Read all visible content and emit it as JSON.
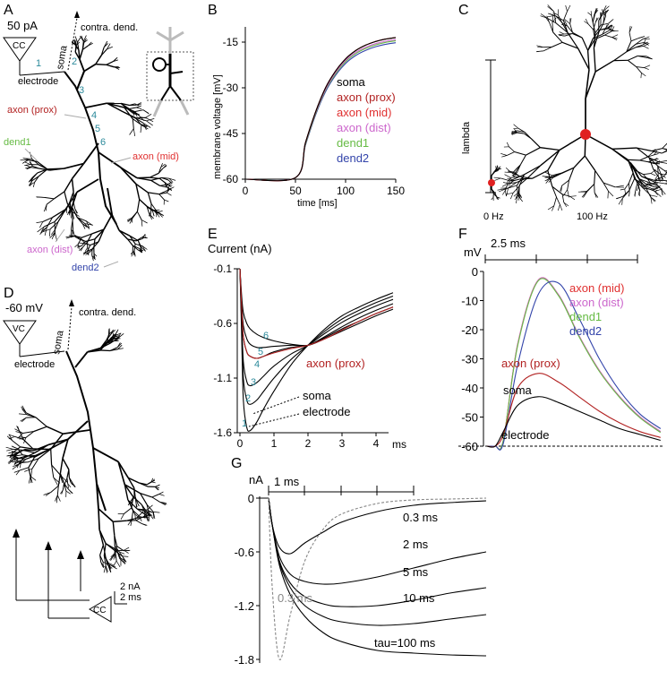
{
  "colors": {
    "soma": "#000000",
    "axon_prox": "#b22222",
    "axon_mid": "#e03030",
    "axon_dist": "#cc66cc",
    "dend1": "#66bb44",
    "dend2": "#3344aa",
    "number": "#2c8a9b",
    "gray": "#888888",
    "cell_marker": "#e02020"
  },
  "panels": {
    "A": {
      "letter": "A",
      "clamp_value": "50 pA",
      "clamp_label": "CC",
      "electrode": "electrode",
      "contra": "contra. dend.",
      "soma": "soma",
      "axon_prox": "axon (prox)",
      "axon_mid": "axon (mid)",
      "axon_dist": "axon (dist)",
      "dend1": "dend1",
      "dend2": "dend2",
      "numbers": [
        "1",
        "2",
        "3",
        "4",
        "5",
        "6"
      ]
    },
    "B": {
      "letter": "B",
      "ylabel": "membrane voltage [mV]",
      "xlabel": "time [ms]",
      "yticks": [
        "-15",
        "-30",
        "-45",
        "-60"
      ],
      "xticks": [
        "0",
        "50",
        "100",
        "150"
      ],
      "legend": [
        "soma",
        "axon  (prox)",
        "axon  (mid)",
        "axon  (dist)",
        "dend1",
        "dend2"
      ]
    },
    "C": {
      "letter": "C",
      "ylabel": "lambda",
      "cells": [
        "0 Hz",
        "100 Hz"
      ]
    },
    "D": {
      "letter": "D",
      "clamp_value": "-60 mV",
      "clamp_label": "VC",
      "electrode": "electrode",
      "contra": "contra. dend.",
      "soma": "soma",
      "cc_label": "CC",
      "scale_current": "2 nA",
      "scale_time": "2 ms"
    },
    "E": {
      "letter": "E",
      "title": "Current (nA)",
      "yticks": [
        "-0.1",
        "-0.6",
        "-1.1",
        "-1.6"
      ],
      "xticks": [
        "0",
        "1",
        "2",
        "3",
        "4"
      ],
      "xunit": "ms",
      "axon_prox": "axon (prox)",
      "soma": "soma",
      "electrode": "electrode",
      "numbers": [
        "1",
        "2",
        "3",
        "4",
        "5",
        "6"
      ]
    },
    "F": {
      "letter": "F",
      "yunit": "mV",
      "scalebar": "2.5 ms",
      "yticks": [
        "0",
        "-10",
        "-20",
        "-30",
        "-40",
        "-50",
        "-60"
      ],
      "labels": [
        "axon (mid)",
        "axon (dist)",
        "dend1",
        "dend2",
        "axon (prox)",
        "soma",
        "electrode"
      ]
    },
    "G": {
      "letter": "G",
      "yunit": "nA",
      "scalebar": "1 ms",
      "yticks": [
        "0",
        "-0.6",
        "-1.2",
        "-1.8"
      ],
      "tau_labels": [
        "0.3 ms",
        "2 ms",
        "5 ms",
        "10 ms",
        "tau=100 ms"
      ],
      "gray_label": "0.3 ms"
    }
  },
  "chart_data": [
    {
      "type": "line",
      "panel": "B",
      "xlabel": "time [ms]",
      "ylabel": "membrane voltage [mV]",
      "xlim": [
        0,
        150
      ],
      "ylim": [
        -60,
        -10
      ],
      "x": [
        0,
        50,
        60,
        70,
        80,
        90,
        100,
        110,
        120,
        130,
        140,
        150
      ],
      "series": [
        {
          "name": "soma",
          "values": [
            -60,
            -59.5,
            -48,
            -38,
            -30,
            -24.5,
            -20.5,
            -17.8,
            -16,
            -14.8,
            -14,
            -13.5
          ]
        },
        {
          "name": "axon  (prox)",
          "values": [
            -60,
            -59.5,
            -48,
            -38,
            -30,
            -24.5,
            -20.5,
            -17.8,
            -16,
            -14.8,
            -14,
            -13.5
          ]
        },
        {
          "name": "axon  (mid)",
          "values": [
            -60,
            -59.5,
            -48,
            -38,
            -30,
            -24.5,
            -20.5,
            -17.8,
            -16,
            -14.8,
            -14,
            -13.5
          ]
        },
        {
          "name": "axon  (dist)",
          "values": [
            -60,
            -59.5,
            -48.2,
            -38.3,
            -30.5,
            -25,
            -21,
            -18.4,
            -16.7,
            -15.5,
            -14.7,
            -14.2
          ]
        },
        {
          "name": "dend1",
          "values": [
            -60,
            -59.5,
            -48.5,
            -38.6,
            -30.8,
            -25.4,
            -21.4,
            -18.8,
            -17.1,
            -15.9,
            -15.1,
            -14.6
          ]
        },
        {
          "name": "dend2",
          "values": [
            -60,
            -59.5,
            -48.8,
            -39,
            -31.3,
            -25.9,
            -22,
            -19.4,
            -17.7,
            -16.5,
            -15.7,
            -15.2
          ]
        }
      ]
    },
    {
      "type": "line",
      "panel": "E",
      "title": "Current (nA)",
      "xlim": [
        0,
        4.5
      ],
      "ylim": [
        -1.6,
        -0.1
      ],
      "x": [
        0,
        0.05,
        0.1,
        0.2,
        0.3,
        0.5,
        0.7,
        1,
        1.5,
        2,
        2.5,
        3,
        3.5,
        4,
        4.5
      ],
      "series": [
        {
          "name": "1",
          "values": [
            -0.1,
            -0.7,
            -1.3,
            -1.55,
            -1.58,
            -1.5,
            -1.38,
            -1.22,
            -0.98,
            -0.8,
            -0.65,
            -0.53,
            -0.45,
            -0.38,
            -0.32
          ]
        },
        {
          "name": "2",
          "values": [
            -0.1,
            -0.6,
            -1.1,
            -1.3,
            -1.34,
            -1.3,
            -1.22,
            -1.1,
            -0.93,
            -0.8,
            -0.67,
            -0.56,
            -0.48,
            -0.41,
            -0.35
          ]
        },
        {
          "name": "3",
          "values": [
            -0.1,
            -0.55,
            -0.95,
            -1.13,
            -1.17,
            -1.14,
            -1.08,
            -0.99,
            -0.88,
            -0.8,
            -0.69,
            -0.59,
            -0.51,
            -0.44,
            -0.38
          ]
        },
        {
          "name": "4",
          "values": [
            -0.1,
            -0.45,
            -0.72,
            -0.86,
            -0.9,
            -0.92,
            -0.9,
            -0.86,
            -0.82,
            -0.8,
            -0.72,
            -0.63,
            -0.55,
            -0.48,
            -0.42
          ]
        },
        {
          "name": "5",
          "values": [
            -0.1,
            -0.4,
            -0.62,
            -0.74,
            -0.79,
            -0.82,
            -0.82,
            -0.81,
            -0.8,
            -0.8,
            -0.73,
            -0.65,
            -0.58,
            -0.51,
            -0.45
          ]
        },
        {
          "name": "6",
          "values": [
            -0.1,
            -0.35,
            -0.5,
            -0.6,
            -0.65,
            -0.7,
            -0.73,
            -0.76,
            -0.79,
            -0.8,
            -0.74,
            -0.67,
            -0.6,
            -0.53,
            -0.47
          ]
        },
        {
          "name": "axon (prox)",
          "values": [
            -0.1,
            -0.45,
            -0.72,
            -0.86,
            -0.9,
            -0.92,
            -0.9,
            -0.87,
            -0.83,
            -0.8,
            -0.74,
            -0.66,
            -0.58,
            -0.51,
            -0.45
          ]
        }
      ]
    },
    {
      "type": "line",
      "panel": "F",
      "yunit": "mV",
      "ylim": [
        -60,
        0
      ],
      "x_ms": [
        0,
        0.4,
        0.8,
        1.5,
        2.5,
        3.5,
        4.5,
        5.5,
        6.5,
        7.5,
        8.5
      ],
      "series": [
        {
          "name": "axon (mid)",
          "values": [
            -60,
            -60,
            -58,
            -25,
            -3,
            -8,
            -22,
            -34,
            -43,
            -50,
            -55
          ]
        },
        {
          "name": "axon (dist)",
          "values": [
            -60,
            -60,
            -58,
            -25,
            -3,
            -8,
            -22,
            -34,
            -43,
            -50,
            -55
          ]
        },
        {
          "name": "dend1",
          "values": [
            -60,
            -60,
            -58,
            -25.5,
            -3.3,
            -8.3,
            -22.3,
            -34.3,
            -43.3,
            -50.3,
            -55.3
          ]
        },
        {
          "name": "dend2",
          "values": [
            -60,
            -60,
            -59,
            -32,
            -8,
            -4,
            -16,
            -30,
            -41,
            -49,
            -54
          ]
        },
        {
          "name": "axon (prox)",
          "values": [
            -60,
            -60,
            -56,
            -40,
            -35,
            -38,
            -43,
            -48,
            -52,
            -55,
            -57
          ]
        },
        {
          "name": "soma",
          "values": [
            -60,
            -60,
            -55,
            -46,
            -43,
            -45,
            -48,
            -51,
            -54,
            -56,
            -58
          ]
        },
        {
          "name": "electrode",
          "values": [
            -60,
            -60,
            -60,
            -60,
            -60,
            -60,
            -60,
            -60,
            -60,
            -60,
            -60
          ]
        }
      ]
    },
    {
      "type": "line",
      "panel": "G",
      "yunit": "nA",
      "ylim": [
        -1.8,
        0
      ],
      "x_ms": [
        0,
        0.1,
        0.3,
        0.6,
        1,
        1.5,
        2,
        3,
        4,
        5,
        6
      ],
      "series": [
        {
          "name": "0.3 ms",
          "values": [
            0,
            -0.3,
            -0.55,
            -0.62,
            -0.5,
            -0.38,
            -0.27,
            -0.15,
            -0.08,
            -0.05,
            -0.03
          ]
        },
        {
          "name": "2 ms",
          "values": [
            0,
            -0.3,
            -0.65,
            -0.85,
            -0.93,
            -0.96,
            -0.95,
            -0.88,
            -0.78,
            -0.68,
            -0.6
          ]
        },
        {
          "name": "5 ms",
          "values": [
            0,
            -0.3,
            -0.7,
            -0.95,
            -1.1,
            -1.18,
            -1.21,
            -1.2,
            -1.14,
            -1.06,
            -1.0
          ]
        },
        {
          "name": "10 ms",
          "values": [
            0,
            -0.3,
            -0.72,
            -1.0,
            -1.2,
            -1.32,
            -1.38,
            -1.42,
            -1.4,
            -1.35,
            -1.3
          ]
        },
        {
          "name": "tau=100 ms",
          "values": [
            0,
            -0.3,
            -0.75,
            -1.08,
            -1.32,
            -1.5,
            -1.6,
            -1.7,
            -1.73,
            -1.75,
            -1.76
          ]
        },
        {
          "name": "0.3 ms (gray)",
          "values": [
            0,
            -1.0,
            -1.8,
            -1.3,
            -0.7,
            -0.35,
            -0.18,
            -0.06,
            -0.02,
            -0.01,
            0
          ]
        }
      ]
    }
  ]
}
